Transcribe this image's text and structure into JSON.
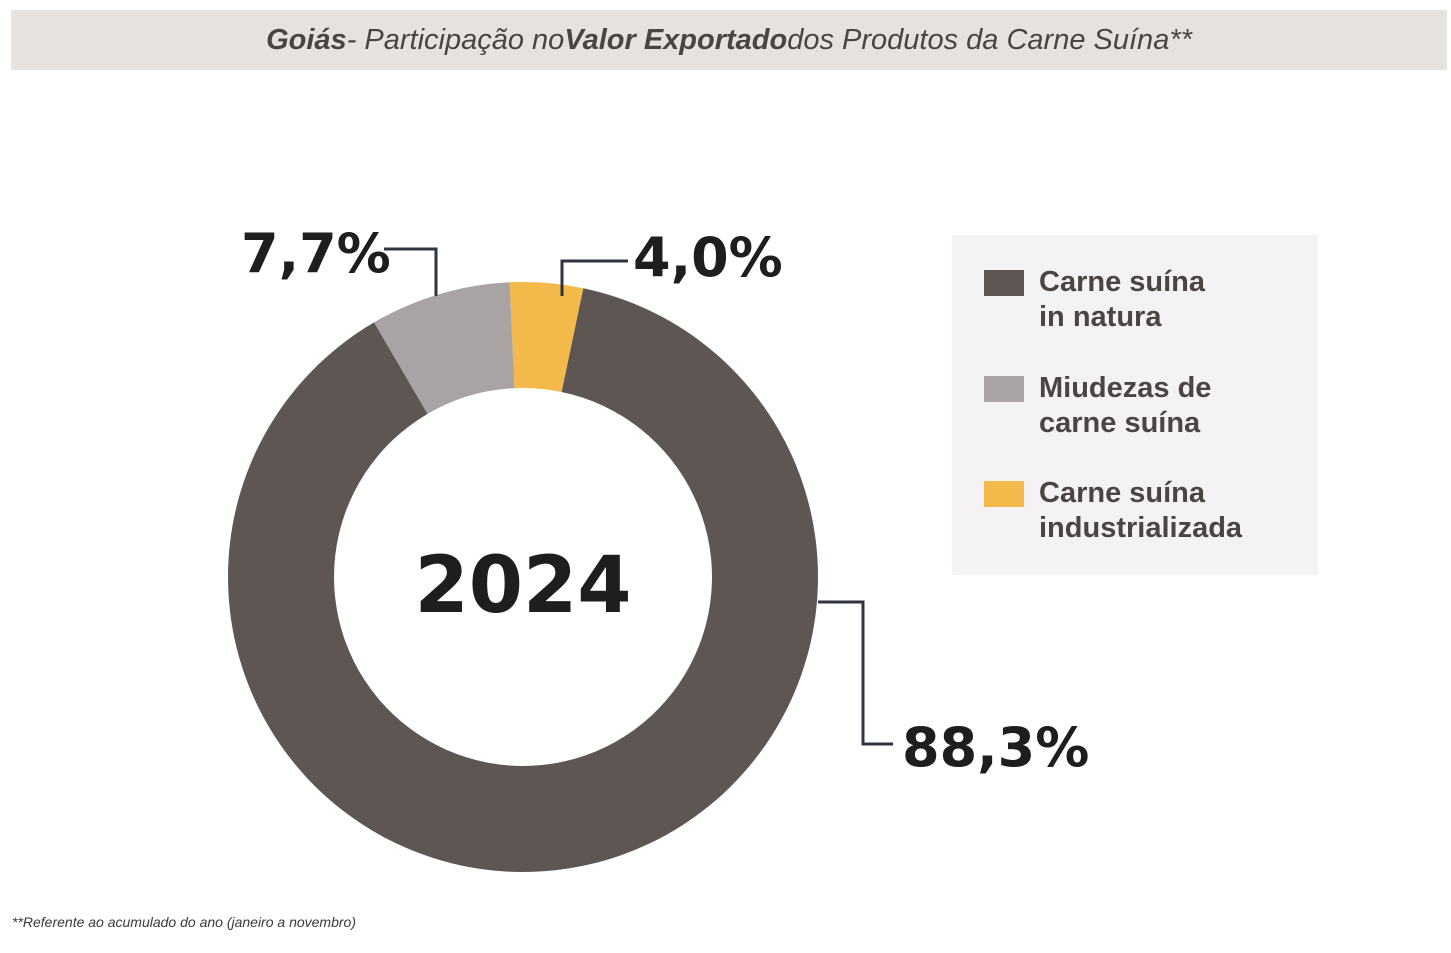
{
  "title": {
    "part1": "Goiás",
    "part2": " - Participação no ",
    "part3": "Valor Exportado",
    "part4": " dos Produtos da Carne Suína**"
  },
  "chart_data": {
    "type": "pie",
    "subtype": "donut",
    "center_label": "2024",
    "categories": [
      "Carne suína in natura",
      "Miudezas de carne suína",
      "Carne suína industrializada"
    ],
    "values": [
      88.3,
      7.7,
      4.0
    ],
    "value_labels": [
      "88,3%",
      "7,7%",
      "4,0%"
    ],
    "colors": [
      "#5d5653",
      "#a9a4a3",
      "#f3b94a"
    ],
    "unit": "%"
  },
  "legend": {
    "items": [
      {
        "line1": "Carne suína",
        "line2": "in natura",
        "color": "#5d5653"
      },
      {
        "line1": "Miudezas de",
        "line2": "carne suína",
        "color": "#a9a4a3"
      },
      {
        "line1": "Carne suína",
        "line2": "industrializada",
        "color": "#f3b94a"
      }
    ]
  },
  "footnote": "**Referente ao acumulado do ano (janeiro a novembro)"
}
